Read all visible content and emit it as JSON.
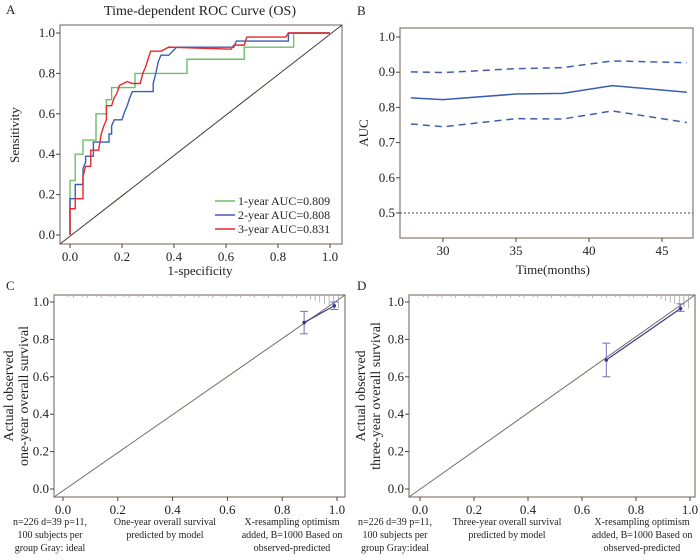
{
  "chart_data": [
    {
      "panel": "A",
      "type": "line",
      "title": "Time-dependent ROC Curve (OS)",
      "xlabel": "1-specificity",
      "ylabel": "Sensitivity",
      "xlim": [
        0,
        1
      ],
      "ylim": [
        0,
        1
      ],
      "xticks": [
        "0.0",
        "0.2",
        "0.4",
        "0.6",
        "0.8",
        "1.0"
      ],
      "yticks": [
        "0.0",
        "0.2",
        "0.4",
        "0.6",
        "0.8",
        "1.0"
      ],
      "legend_position": "bottom-right",
      "reference_line": "diagonal",
      "series": [
        {
          "name": "1-year AUC=0.809",
          "color": "#6dbf6d",
          "points": [
            [
              0,
              0
            ],
            [
              0,
              0.13
            ],
            [
              0,
              0.27
            ],
            [
              0.02,
              0.27
            ],
            [
              0.02,
              0.4
            ],
            [
              0.05,
              0.4
            ],
            [
              0.05,
              0.47
            ],
            [
              0.1,
              0.47
            ],
            [
              0.1,
              0.6
            ],
            [
              0.14,
              0.6
            ],
            [
              0.14,
              0.67
            ],
            [
              0.16,
              0.67
            ],
            [
              0.16,
              0.73
            ],
            [
              0.25,
              0.73
            ],
            [
              0.25,
              0.8
            ],
            [
              0.45,
              0.8
            ],
            [
              0.45,
              0.87
            ],
            [
              0.67,
              0.87
            ],
            [
              0.67,
              0.93
            ],
            [
              0.86,
              0.93
            ],
            [
              0.86,
              1
            ],
            [
              1,
              1
            ]
          ]
        },
        {
          "name": "2-year AUC=0.808",
          "color": "#3a5fb0",
          "points": [
            [
              0,
              0
            ],
            [
              0,
              0.18
            ],
            [
              0.02,
              0.18
            ],
            [
              0.02,
              0.25
            ],
            [
              0.05,
              0.25
            ],
            [
              0.05,
              0.33
            ],
            [
              0.06,
              0.36
            ],
            [
              0.06,
              0.39
            ],
            [
              0.09,
              0.39
            ],
            [
              0.09,
              0.46
            ],
            [
              0.15,
              0.46
            ],
            [
              0.15,
              0.5
            ],
            [
              0.16,
              0.5
            ],
            [
              0.16,
              0.54
            ],
            [
              0.17,
              0.57
            ],
            [
              0.2,
              0.57
            ],
            [
              0.21,
              0.61
            ],
            [
              0.22,
              0.64
            ],
            [
              0.23,
              0.68
            ],
            [
              0.24,
              0.71
            ],
            [
              0.32,
              0.71
            ],
            [
              0.32,
              0.75
            ],
            [
              0.33,
              0.8
            ],
            [
              0.34,
              0.86
            ],
            [
              0.35,
              0.89
            ],
            [
              0.38,
              0.89
            ],
            [
              0.41,
              0.93
            ],
            [
              0.63,
              0.93
            ],
            [
              0.64,
              0.96
            ],
            [
              0.84,
              0.96
            ],
            [
              0.84,
              1
            ],
            [
              1,
              1
            ]
          ]
        },
        {
          "name": "3-year AUC=0.831",
          "color": "#e8282b",
          "points": [
            [
              0,
              0
            ],
            [
              0,
              0.13
            ],
            [
              0.02,
              0.13
            ],
            [
              0.02,
              0.18
            ],
            [
              0.05,
              0.18
            ],
            [
              0.05,
              0.29
            ],
            [
              0.06,
              0.34
            ],
            [
              0.08,
              0.34
            ],
            [
              0.08,
              0.42
            ],
            [
              0.11,
              0.42
            ],
            [
              0.12,
              0.5
            ],
            [
              0.13,
              0.54
            ],
            [
              0.14,
              0.57
            ],
            [
              0.14,
              0.64
            ],
            [
              0.16,
              0.64
            ],
            [
              0.17,
              0.68
            ],
            [
              0.18,
              0.7
            ],
            [
              0.19,
              0.74
            ],
            [
              0.22,
              0.76
            ],
            [
              0.24,
              0.75
            ],
            [
              0.27,
              0.75
            ],
            [
              0.28,
              0.8
            ],
            [
              0.29,
              0.83
            ],
            [
              0.3,
              0.87
            ],
            [
              0.31,
              0.91
            ],
            [
              0.35,
              0.91
            ],
            [
              0.38,
              0.93
            ],
            [
              0.62,
              0.92
            ],
            [
              0.63,
              0.94
            ],
            [
              0.67,
              0.94
            ],
            [
              0.68,
              0.98
            ],
            [
              0.83,
              0.98
            ],
            [
              0.84,
              1
            ],
            [
              1,
              1
            ]
          ]
        }
      ]
    },
    {
      "panel": "B",
      "type": "line",
      "title": "",
      "xlabel": "Time(months)",
      "ylabel": "AUC",
      "xlim": [
        26,
        47.5
      ],
      "ylim": [
        0.43,
        1.02
      ],
      "xticks": [
        "30",
        "35",
        "40",
        "45"
      ],
      "yticks": [
        "0.5",
        "0.6",
        "0.7",
        "0.8",
        "0.9",
        "1.0"
      ],
      "color": "#3a5fb0",
      "reference_line_y": 0.5,
      "x": [
        27.8,
        30,
        35,
        38.2,
        41.6,
        46.7
      ],
      "series": [
        {
          "style": "solid",
          "values": [
            0.827,
            0.822,
            0.838,
            0.84,
            0.862,
            0.843
          ]
        },
        {
          "style": "dashed",
          "values": [
            0.901,
            0.899,
            0.91,
            0.913,
            0.932,
            0.927
          ]
        },
        {
          "style": "dashed",
          "values": [
            0.753,
            0.745,
            0.768,
            0.767,
            0.79,
            0.757
          ]
        }
      ]
    },
    {
      "panel": "C",
      "type": "scatter",
      "ylabel_lines": [
        "Actual observed",
        "one-year overall survival"
      ],
      "xlim": [
        0,
        1
      ],
      "ylim": [
        0,
        1
      ],
      "xticks": [
        "0.0",
        "0.2",
        "0.4",
        "0.6",
        "0.8",
        "1.0"
      ],
      "yticks": [
        "0.0",
        "0.2",
        "0.4",
        "0.6",
        "0.8",
        "1.0"
      ],
      "footer": [
        [
          "n=226 d=39 p=11,",
          "100 subjects per",
          "group Gray: ideal"
        ],
        [
          "One-year overall survival",
          "predicted by model"
        ],
        [
          "X-resampling optimism",
          "added, B=1000 Based on",
          "observed-predicted"
        ]
      ],
      "points": [
        {
          "x": 0.88,
          "y": 0.89,
          "lo": 0.83,
          "hi": 0.95
        },
        {
          "x": 0.99,
          "y": 0.98,
          "lo": 0.96,
          "hi": 1.0
        }
      ]
    },
    {
      "panel": "D",
      "type": "scatter",
      "ylabel_lines": [
        "Actual observed",
        "three-year overall survival"
      ],
      "xlim": [
        0,
        1
      ],
      "ylim": [
        0,
        1
      ],
      "xticks": [
        "0.0",
        "0.2",
        "0.4",
        "0.6",
        "0.8",
        "1.0"
      ],
      "yticks": [
        "0.0",
        "0.2",
        "0.4",
        "0.6",
        "0.8",
        "1.0"
      ],
      "footer": [
        [
          "n=226 d=39 p=11,",
          "100 subjects per",
          "group Gray:ideal"
        ],
        [
          "Three-year overall survival",
          "predicted by model"
        ],
        [
          "X-resampling optimism",
          "added, B=1000 Based on",
          "observed-predicted"
        ]
      ],
      "points": [
        {
          "x": 0.69,
          "y": 0.69,
          "lo": 0.6,
          "hi": 0.78
        },
        {
          "x": 0.965,
          "y": 0.965,
          "lo": 0.95,
          "hi": 0.99
        }
      ]
    }
  ]
}
